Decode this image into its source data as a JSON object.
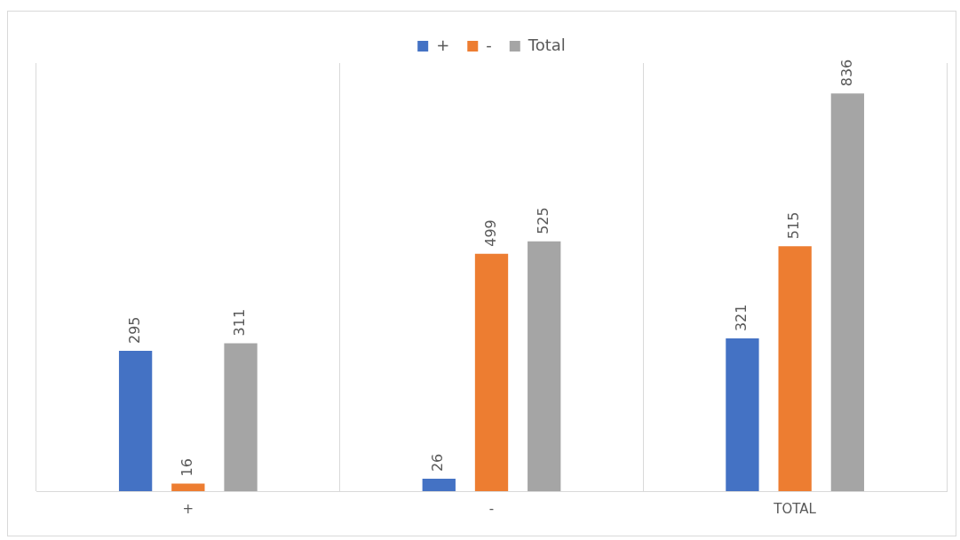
{
  "chart_data": {
    "type": "bar",
    "categories": [
      "+",
      "-",
      "TOTAL"
    ],
    "series": [
      {
        "name": "+",
        "color": "#4472c4",
        "values": [
          295,
          26,
          321
        ]
      },
      {
        "name": "-",
        "color": "#ed7d31",
        "values": [
          16,
          499,
          515
        ]
      },
      {
        "name": "Total",
        "color": "#a5a5a5",
        "values": [
          311,
          525,
          836
        ]
      }
    ],
    "tick_labels": "x",
    "data_labels": true,
    "legend": "top",
    "grid": "x"
  }
}
